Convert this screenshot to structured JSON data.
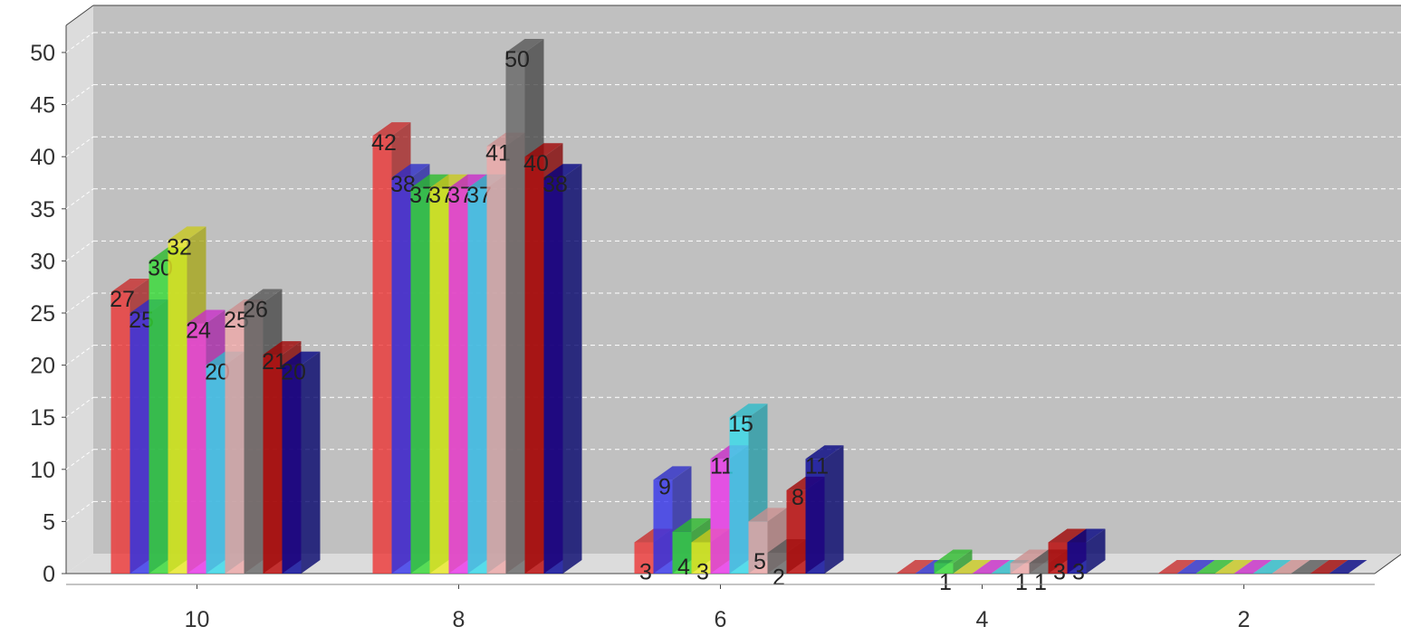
{
  "chart_data": {
    "type": "bar",
    "style": "3d-clustered",
    "categories": [
      "10",
      "8",
      "6",
      "4",
      "2"
    ],
    "y_ticks": [
      "0",
      "5",
      "10",
      "15",
      "20",
      "25",
      "30",
      "35",
      "40",
      "45",
      "50"
    ],
    "ylim": [
      0,
      50
    ],
    "grid": true,
    "series": [
      {
        "values": [
          27,
          42,
          3,
          0,
          0
        ],
        "color": "#ee3333"
      },
      {
        "values": [
          25,
          38,
          9,
          0,
          0
        ],
        "color": "#3333ee"
      },
      {
        "values": [
          30,
          37,
          4,
          1,
          0
        ],
        "color": "#33dd33"
      },
      {
        "values": [
          32,
          37,
          3,
          0,
          0
        ],
        "color": "#eeee22"
      },
      {
        "values": [
          24,
          37,
          11,
          0,
          0
        ],
        "color": "#ee33ee"
      },
      {
        "values": [
          20,
          37,
          15,
          0,
          0
        ],
        "color": "#33ddee"
      },
      {
        "values": [
          25,
          41,
          5,
          1,
          0
        ],
        "color": "#f0a8a8"
      },
      {
        "values": [
          26,
          50,
          2,
          1,
          0
        ],
        "color": "#666666"
      },
      {
        "values": [
          21,
          40,
          8,
          3,
          0
        ],
        "color": "#bb0000"
      },
      {
        "values": [
          20,
          38,
          11,
          3,
          0
        ],
        "color": "#000099"
      }
    ]
  }
}
